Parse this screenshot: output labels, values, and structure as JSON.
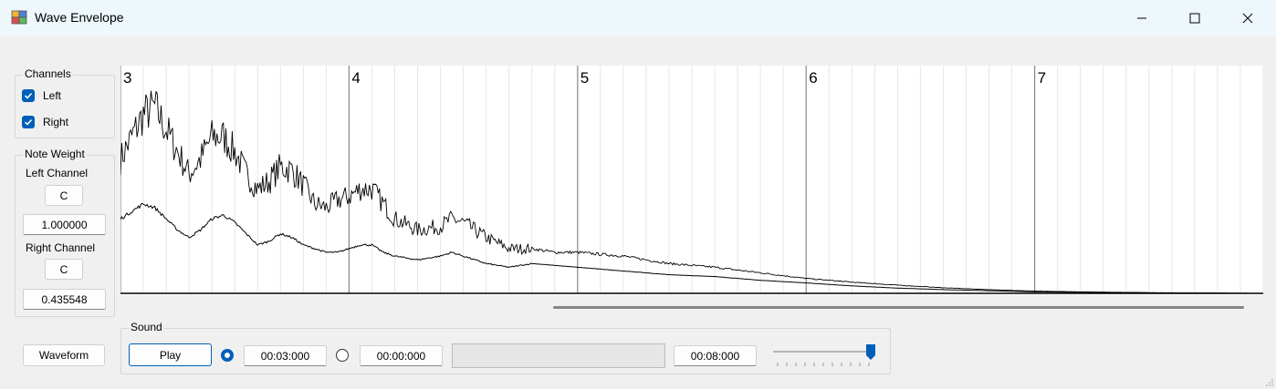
{
  "window": {
    "title": "Wave Envelope",
    "minimize_icon": "minimize-icon",
    "maximize_icon": "maximize-icon",
    "close_icon": "close-icon"
  },
  "channels": {
    "legend": "Channels",
    "left_label": "Left",
    "left_checked": true,
    "right_label": "Right",
    "right_checked": true
  },
  "note_weight": {
    "legend": "Note Weight",
    "left_channel_label": "Left Channel",
    "left_note": "C",
    "left_value": "1.000000",
    "right_channel_label": "Right Channel",
    "right_note": "C",
    "right_value": "0.435548"
  },
  "waveform_button": "Waveform",
  "sound": {
    "legend": "Sound",
    "play_label": "Play",
    "radio1_checked": true,
    "time_start": "00:03:000",
    "radio2_checked": false,
    "time_second": "00:00:000",
    "time_end": "00:08:000",
    "volume_level": 1.0
  },
  "chart_data": {
    "type": "line",
    "x_tick_labels": [
      "3",
      "4",
      "5",
      "6",
      "7"
    ],
    "xlim": [
      3,
      8
    ],
    "grid": true,
    "series": [
      {
        "values": [
          [
            3.0,
            0.36
          ],
          [
            3.05,
            0.42
          ],
          [
            3.1,
            0.48
          ],
          [
            3.15,
            0.5
          ],
          [
            3.2,
            0.44
          ],
          [
            3.25,
            0.38
          ],
          [
            3.3,
            0.32
          ],
          [
            3.35,
            0.36
          ],
          [
            3.4,
            0.42
          ],
          [
            3.45,
            0.42
          ],
          [
            3.5,
            0.38
          ],
          [
            3.55,
            0.32
          ],
          [
            3.6,
            0.28
          ],
          [
            3.65,
            0.3
          ],
          [
            3.7,
            0.34
          ],
          [
            3.75,
            0.33
          ],
          [
            3.8,
            0.29
          ],
          [
            3.85,
            0.24
          ],
          [
            3.9,
            0.23
          ],
          [
            3.95,
            0.25
          ],
          [
            4.0,
            0.26
          ],
          [
            4.05,
            0.28
          ],
          [
            4.1,
            0.28
          ],
          [
            4.15,
            0.24
          ],
          [
            4.2,
            0.2
          ],
          [
            4.3,
            0.17
          ],
          [
            4.4,
            0.18
          ],
          [
            4.45,
            0.2
          ],
          [
            4.5,
            0.19
          ],
          [
            4.6,
            0.15
          ],
          [
            4.7,
            0.12
          ],
          [
            4.8,
            0.12
          ],
          [
            4.9,
            0.11
          ],
          [
            5.0,
            0.11
          ],
          [
            5.2,
            0.1
          ],
          [
            5.4,
            0.08
          ],
          [
            5.6,
            0.07
          ],
          [
            5.8,
            0.055
          ],
          [
            6.0,
            0.04
          ],
          [
            6.2,
            0.03
          ],
          [
            6.4,
            0.022
          ],
          [
            6.6,
            0.015
          ],
          [
            6.8,
            0.01
          ],
          [
            7.0,
            0.006
          ],
          [
            7.2,
            0.004
          ],
          [
            7.5,
            0.002
          ],
          [
            8.0,
            0.0
          ]
        ]
      },
      {
        "values": [
          [
            3.0,
            0.2
          ],
          [
            3.05,
            0.22
          ],
          [
            3.1,
            0.24
          ],
          [
            3.15,
            0.23
          ],
          [
            3.2,
            0.2
          ],
          [
            3.25,
            0.17
          ],
          [
            3.3,
            0.15
          ],
          [
            3.35,
            0.17
          ],
          [
            3.4,
            0.2
          ],
          [
            3.45,
            0.21
          ],
          [
            3.5,
            0.19
          ],
          [
            3.55,
            0.16
          ],
          [
            3.6,
            0.13
          ],
          [
            3.65,
            0.14
          ],
          [
            3.7,
            0.16
          ],
          [
            3.75,
            0.15
          ],
          [
            3.8,
            0.13
          ],
          [
            3.85,
            0.12
          ],
          [
            3.9,
            0.11
          ],
          [
            3.95,
            0.11
          ],
          [
            4.0,
            0.12
          ],
          [
            4.05,
            0.13
          ],
          [
            4.1,
            0.13
          ],
          [
            4.15,
            0.11
          ],
          [
            4.2,
            0.1
          ],
          [
            4.3,
            0.09
          ],
          [
            4.4,
            0.1
          ],
          [
            4.45,
            0.11
          ],
          [
            4.5,
            0.1
          ],
          [
            4.6,
            0.08
          ],
          [
            4.7,
            0.07
          ],
          [
            4.8,
            0.08
          ],
          [
            4.9,
            0.075
          ],
          [
            5.0,
            0.07
          ],
          [
            5.2,
            0.06
          ],
          [
            5.4,
            0.05
          ],
          [
            5.6,
            0.045
          ],
          [
            5.8,
            0.035
          ],
          [
            6.0,
            0.028
          ],
          [
            6.2,
            0.02
          ],
          [
            6.4,
            0.014
          ],
          [
            6.6,
            0.01
          ],
          [
            6.8,
            0.007
          ],
          [
            7.0,
            0.004
          ],
          [
            7.2,
            0.003
          ],
          [
            7.5,
            0.001
          ],
          [
            8.0,
            0.0
          ]
        ]
      }
    ]
  }
}
